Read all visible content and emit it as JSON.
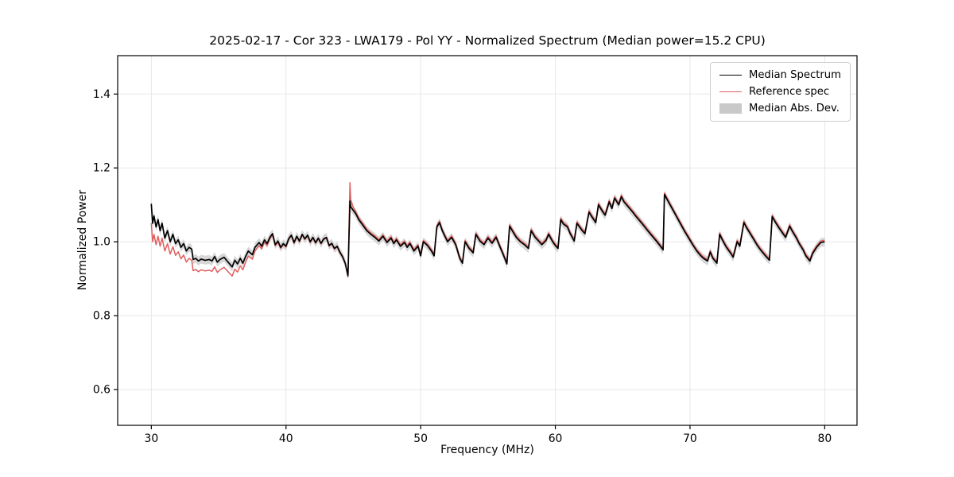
{
  "chart_data": {
    "type": "line",
    "title": "2025-02-17 - Cor 323 - LWA179 - Pol YY - Normalized Spectrum (Median power=15.2 CPU)",
    "xlabel": "Frequency (MHz)",
    "ylabel": "Normalized Power",
    "xlim": [
      27.5,
      82.4
    ],
    "ylim": [
      0.503,
      1.504
    ],
    "xticks": [
      30,
      40,
      50,
      60,
      70,
      80
    ],
    "xtick_labels": [
      "30",
      "40",
      "50",
      "60",
      "70",
      "80"
    ],
    "yticks": [
      0.6,
      0.8,
      1.0,
      1.2,
      1.4
    ],
    "ytick_labels": [
      "0.6",
      "0.8",
      "1.0",
      "1.2",
      "1.4"
    ],
    "grid": true,
    "legend_position": "upper right",
    "legend": [
      "Median Spectrum",
      "Reference spec",
      "Median Abs. Dev."
    ],
    "mad_halfwidth": 0.012,
    "colors": {
      "median": "#000000",
      "reference": "#e05f5f",
      "band": "#c9c9c9",
      "grid": "#e7e7e7",
      "frame": "#000000"
    },
    "x": [
      30.0,
      30.1,
      30.2,
      30.35,
      30.5,
      30.65,
      30.8,
      31.0,
      31.2,
      31.4,
      31.6,
      31.8,
      32.0,
      32.2,
      32.4,
      32.6,
      32.8,
      33.0,
      33.1,
      33.3,
      33.5,
      33.7,
      34.0,
      34.3,
      34.5,
      34.7,
      34.9,
      35.1,
      35.4,
      35.7,
      36.0,
      36.2,
      36.4,
      36.6,
      36.8,
      37.0,
      37.2,
      37.5,
      37.7,
      38.0,
      38.2,
      38.4,
      38.6,
      38.8,
      39.0,
      39.2,
      39.4,
      39.6,
      39.8,
      40.0,
      40.2,
      40.4,
      40.6,
      40.8,
      41.0,
      41.2,
      41.4,
      41.6,
      41.8,
      42.0,
      42.2,
      42.4,
      42.6,
      42.8,
      43.0,
      43.2,
      43.4,
      43.6,
      43.8,
      44.0,
      44.2,
      44.4,
      44.6,
      44.75,
      44.8,
      45.0,
      45.2,
      45.4,
      45.6,
      45.8,
      46.0,
      46.3,
      46.6,
      46.9,
      47.2,
      47.5,
      47.8,
      48.0,
      48.2,
      48.5,
      48.8,
      49.0,
      49.2,
      49.5,
      49.8,
      50.0,
      50.2,
      50.5,
      50.8,
      51.0,
      51.2,
      51.4,
      51.6,
      51.8,
      52.0,
      52.3,
      52.6,
      52.9,
      53.1,
      53.3,
      53.6,
      53.9,
      54.1,
      54.4,
      54.7,
      55.0,
      55.3,
      55.6,
      55.9,
      56.1,
      56.4,
      56.6,
      56.8,
      57.1,
      57.4,
      57.7,
      58.0,
      58.2,
      58.5,
      58.8,
      59.0,
      59.3,
      59.5,
      59.8,
      60.0,
      60.2,
      60.4,
      60.6,
      60.9,
      61.1,
      61.4,
      61.6,
      61.8,
      62.0,
      62.2,
      62.5,
      62.7,
      63.0,
      63.2,
      63.5,
      63.7,
      64.0,
      64.2,
      64.4,
      64.7,
      64.9,
      65.1,
      65.4,
      65.7,
      66.0,
      66.3,
      66.6,
      66.9,
      67.2,
      67.5,
      67.8,
      68.0,
      68.1,
      68.4,
      68.7,
      69.0,
      69.3,
      69.6,
      69.9,
      70.2,
      70.5,
      70.8,
      71.0,
      71.3,
      71.5,
      71.7,
      72.0,
      72.2,
      72.4,
      72.7,
      73.0,
      73.2,
      73.5,
      73.7,
      74.0,
      74.2,
      74.5,
      74.8,
      75.0,
      75.3,
      75.6,
      75.9,
      76.1,
      76.3,
      76.6,
      76.9,
      77.1,
      77.4,
      77.6,
      77.9,
      78.1,
      78.4,
      78.6,
      78.9,
      79.1,
      79.4,
      79.7,
      80.0
    ],
    "series": [
      {
        "name": "Median Spectrum",
        "values": [
          1.103,
          1.05,
          1.07,
          1.04,
          1.06,
          1.03,
          1.05,
          1.01,
          1.03,
          1.0,
          1.02,
          0.995,
          1.005,
          0.985,
          0.995,
          0.975,
          0.985,
          0.98,
          0.952,
          0.955,
          0.948,
          0.953,
          0.95,
          0.952,
          0.948,
          0.96,
          0.945,
          0.952,
          0.958,
          0.945,
          0.932,
          0.95,
          0.94,
          0.955,
          0.942,
          0.96,
          0.975,
          0.965,
          0.985,
          0.998,
          0.988,
          1.005,
          0.995,
          1.012,
          1.022,
          0.992,
          1.002,
          0.985,
          0.995,
          0.988,
          1.008,
          1.018,
          0.998,
          1.015,
          1.002,
          1.02,
          1.008,
          1.018,
          1.0,
          1.012,
          0.998,
          1.01,
          0.996,
          1.008,
          1.012,
          0.99,
          0.996,
          0.982,
          0.988,
          0.972,
          0.96,
          0.942,
          0.908,
          1.11,
          1.095,
          1.085,
          1.075,
          1.06,
          1.05,
          1.04,
          1.03,
          1.02,
          1.012,
          1.002,
          1.015,
          0.998,
          1.01,
          0.995,
          1.005,
          0.988,
          0.998,
          0.985,
          0.995,
          0.975,
          0.988,
          0.962,
          1.0,
          0.99,
          0.975,
          0.962,
          1.04,
          1.052,
          1.03,
          1.015,
          1.0,
          1.012,
          0.992,
          0.955,
          0.942,
          1.0,
          0.982,
          0.97,
          1.02,
          1.002,
          0.992,
          1.01,
          0.996,
          1.012,
          0.985,
          0.968,
          0.94,
          1.042,
          1.03,
          1.012,
          1.0,
          0.992,
          0.982,
          1.03,
          1.012,
          1.0,
          0.992,
          1.003,
          1.02,
          1.0,
          0.99,
          0.982,
          1.06,
          1.048,
          1.04,
          1.022,
          1.002,
          1.05,
          1.04,
          1.03,
          1.022,
          1.08,
          1.068,
          1.052,
          1.1,
          1.082,
          1.072,
          1.108,
          1.09,
          1.118,
          1.1,
          1.122,
          1.108,
          1.095,
          1.082,
          1.068,
          1.055,
          1.042,
          1.028,
          1.015,
          1.002,
          0.988,
          0.978,
          1.128,
          1.108,
          1.088,
          1.068,
          1.048,
          1.028,
          1.01,
          0.992,
          0.975,
          0.962,
          0.955,
          0.948,
          0.972,
          0.955,
          0.942,
          1.02,
          1.005,
          0.985,
          0.97,
          0.958,
          1.0,
          0.988,
          1.052,
          1.038,
          1.02,
          1.002,
          0.99,
          0.975,
          0.962,
          0.95,
          1.068,
          1.055,
          1.038,
          1.022,
          1.012,
          1.042,
          1.028,
          1.01,
          0.995,
          0.978,
          0.962,
          0.948,
          0.968,
          0.985,
          0.998,
          1.0
        ]
      },
      {
        "name": "Reference spec",
        "values": [
          1.051,
          1.0,
          1.02,
          0.992,
          1.015,
          0.988,
          1.01,
          0.975,
          0.995,
          0.967,
          0.987,
          0.963,
          0.973,
          0.954,
          0.964,
          0.945,
          0.955,
          0.95,
          0.922,
          0.925,
          0.919,
          0.924,
          0.921,
          0.923,
          0.92,
          0.932,
          0.917,
          0.924,
          0.931,
          0.919,
          0.907,
          0.926,
          0.918,
          0.935,
          0.924,
          0.944,
          0.961,
          0.953,
          0.975,
          0.99,
          0.981,
          0.999,
          0.99,
          1.008,
          1.018,
          0.989,
          0.999,
          0.982,
          0.992,
          0.986,
          1.006,
          1.016,
          0.996,
          1.013,
          1.0,
          1.018,
          1.006,
          1.016,
          0.998,
          1.01,
          0.996,
          1.008,
          0.994,
          1.006,
          1.01,
          0.988,
          0.994,
          0.98,
          0.986,
          0.97,
          0.958,
          0.94,
          0.906,
          1.16,
          1.115,
          1.093,
          1.08,
          1.065,
          1.055,
          1.045,
          1.034,
          1.024,
          1.016,
          1.006,
          1.019,
          1.002,
          1.014,
          0.999,
          1.009,
          0.992,
          1.002,
          0.989,
          0.999,
          0.979,
          0.992,
          0.966,
          1.004,
          0.994,
          0.979,
          0.966,
          1.044,
          1.056,
          1.034,
          1.019,
          1.004,
          1.016,
          0.996,
          0.959,
          0.946,
          1.004,
          0.986,
          0.974,
          1.024,
          1.006,
          0.996,
          1.014,
          1.0,
          1.016,
          0.989,
          0.972,
          0.944,
          1.046,
          1.034,
          1.016,
          1.004,
          0.996,
          0.986,
          1.034,
          1.016,
          1.004,
          0.996,
          1.007,
          1.024,
          1.004,
          0.994,
          0.986,
          1.064,
          1.052,
          1.044,
          1.026,
          1.006,
          1.054,
          1.044,
          1.034,
          1.026,
          1.084,
          1.072,
          1.056,
          1.104,
          1.086,
          1.076,
          1.112,
          1.094,
          1.122,
          1.104,
          1.126,
          1.112,
          1.099,
          1.086,
          1.072,
          1.059,
          1.046,
          1.032,
          1.019,
          1.006,
          0.992,
          0.982,
          1.132,
          1.112,
          1.092,
          1.072,
          1.052,
          1.032,
          1.014,
          0.996,
          0.979,
          0.966,
          0.959,
          0.952,
          0.976,
          0.959,
          0.946,
          1.024,
          1.009,
          0.989,
          0.974,
          0.962,
          1.004,
          0.992,
          1.056,
          1.042,
          1.024,
          1.006,
          0.994,
          0.979,
          0.966,
          0.954,
          1.072,
          1.059,
          1.042,
          1.026,
          1.016,
          1.046,
          1.032,
          1.014,
          0.999,
          0.982,
          0.966,
          0.952,
          0.972,
          0.989,
          1.002,
          1.004
        ]
      }
    ]
  }
}
